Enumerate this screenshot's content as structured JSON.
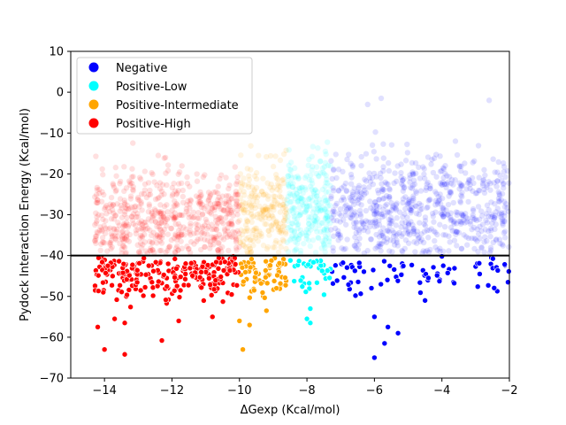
{
  "chart_data": {
    "type": "scatter",
    "title": "",
    "xlabel": "ΔGexp (Kcal/mol)",
    "ylabel": "Pydock Interaction Energy (Kcal/mol)",
    "xlim": [
      -15,
      -2
    ],
    "ylim": [
      -70,
      10
    ],
    "xticks": [
      -14,
      -12,
      -10,
      -8,
      -6,
      -4,
      -2
    ],
    "yticks": [
      10,
      0,
      -10,
      -20,
      -30,
      -40,
      -50,
      -60,
      -70
    ],
    "xtick_labels": [
      "−14",
      "−12",
      "−10",
      "−8",
      "−6",
      "−4",
      "−2"
    ],
    "ytick_labels": [
      "10",
      "0",
      "−10",
      "−20",
      "−30",
      "−40",
      "−50",
      "−60",
      "−70"
    ],
    "threshold_line": -40,
    "grid": false,
    "legend_position": "top-left",
    "series": [
      {
        "name": "Negative",
        "color": "#0000ff",
        "x_range": [
          -7.3,
          -2.0
        ]
      },
      {
        "name": "Positive-Low",
        "color": "#00ffff",
        "x_range": [
          -8.6,
          -7.3
        ]
      },
      {
        "name": "Positive-Intermediate",
        "color": "#ffa500",
        "x_range": [
          -10.0,
          -8.6
        ]
      },
      {
        "name": "Positive-High",
        "color": "#ff0000",
        "x_range": [
          -14.3,
          -10.0
        ]
      }
    ],
    "highlighted_points": [
      {
        "series": "Positive-High",
        "x": -14.2,
        "y": -57.5
      },
      {
        "series": "Positive-High",
        "x": -14.0,
        "y": -63.0
      },
      {
        "series": "Positive-High",
        "x": -13.4,
        "y": -64.2
      },
      {
        "series": "Positive-High",
        "x": -13.7,
        "y": -55.5
      },
      {
        "series": "Positive-High",
        "x": -13.4,
        "y": -56.5
      },
      {
        "series": "Positive-High",
        "x": -12.3,
        "y": -60.8
      },
      {
        "series": "Positive-High",
        "x": -13.9,
        "y": -42.5
      },
      {
        "series": "Positive-High",
        "x": -11.8,
        "y": -56.0
      },
      {
        "series": "Positive-High",
        "x": -10.8,
        "y": -55.0
      },
      {
        "series": "Positive-Intermediate",
        "x": -9.9,
        "y": -63.0
      },
      {
        "series": "Positive-Intermediate",
        "x": -9.7,
        "y": -57.0
      },
      {
        "series": "Positive-Intermediate",
        "x": -10.0,
        "y": -56.0
      },
      {
        "series": "Positive-Intermediate",
        "x": -9.2,
        "y": -53.5
      },
      {
        "series": "Positive-Low",
        "x": -7.9,
        "y": -56.5
      },
      {
        "series": "Positive-Low",
        "x": -8.0,
        "y": -55.5
      },
      {
        "series": "Positive-Low",
        "x": -7.9,
        "y": -53.0
      },
      {
        "series": "Negative",
        "x": -6.0,
        "y": -65.0
      },
      {
        "series": "Negative",
        "x": -5.7,
        "y": -61.5
      },
      {
        "series": "Negative",
        "x": -5.3,
        "y": -59.0
      },
      {
        "series": "Negative",
        "x": -5.6,
        "y": -57.5
      },
      {
        "series": "Negative",
        "x": -6.0,
        "y": -55.0
      },
      {
        "series": "Negative",
        "x": -4.5,
        "y": -51.0
      },
      {
        "series": "Negative",
        "x": -4.4,
        "y": -45.5
      },
      {
        "series": "Negative",
        "x": -4.0,
        "y": -40.2
      }
    ]
  }
}
